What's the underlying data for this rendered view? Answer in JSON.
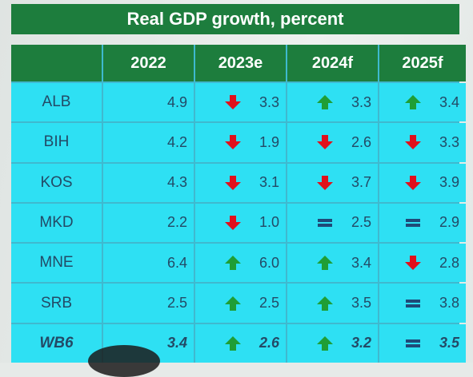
{
  "title": "Real GDP growth, percent",
  "columns": [
    "",
    "2022",
    "2023e",
    "2024f",
    "2025f"
  ],
  "colors": {
    "header_green": "#1d7d3d",
    "cell_cyan": "#2ee0f3",
    "up": "#1f9e35",
    "down": "#e0101c",
    "equal": "#1f4a78"
  },
  "rows": [
    {
      "country": "ALB",
      "v2022": "4.9",
      "v2023": "3.3",
      "v2024": "3.3",
      "v2025": "3.4",
      "i2023": "down",
      "i2024": "up",
      "i2025": "up"
    },
    {
      "country": "BIH",
      "v2022": "4.2",
      "v2023": "1.9",
      "v2024": "2.6",
      "v2025": "3.3",
      "i2023": "down",
      "i2024": "down",
      "i2025": "down"
    },
    {
      "country": "KOS",
      "v2022": "4.3",
      "v2023": "3.1",
      "v2024": "3.7",
      "v2025": "3.9",
      "i2023": "down",
      "i2024": "down",
      "i2025": "down"
    },
    {
      "country": "MKD",
      "v2022": "2.2",
      "v2023": "1.0",
      "v2024": "2.5",
      "v2025": "2.9",
      "i2023": "down",
      "i2024": "equal",
      "i2025": "equal"
    },
    {
      "country": "MNE",
      "v2022": "6.4",
      "v2023": "6.0",
      "v2024": "3.4",
      "v2025": "2.8",
      "i2023": "up",
      "i2024": "up",
      "i2025": "down"
    },
    {
      "country": "SRB",
      "v2022": "2.5",
      "v2023": "2.5",
      "v2024": "3.5",
      "v2025": "3.8",
      "i2023": "up",
      "i2024": "up",
      "i2025": "equal"
    },
    {
      "country": "WB6",
      "v2022": "3.4",
      "v2023": "2.6",
      "v2024": "3.2",
      "v2025": "3.5",
      "i2023": "up",
      "i2024": "up",
      "i2025": "equal"
    }
  ]
}
